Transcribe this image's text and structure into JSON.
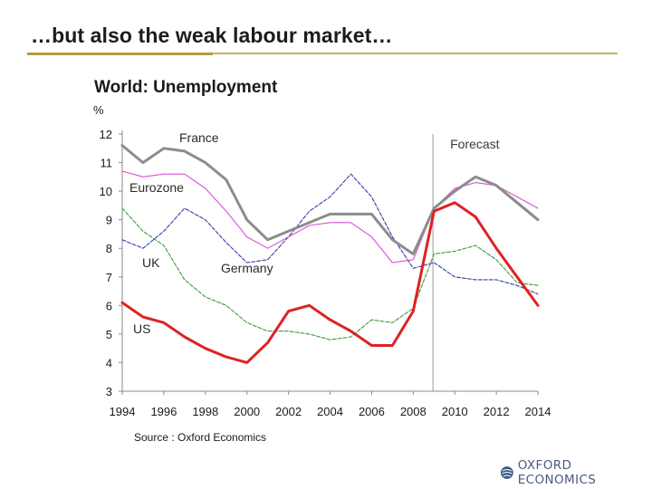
{
  "slide": {
    "title": "…but also the weak labour market…",
    "logo_text": "OXFORD ECONOMICS"
  },
  "colors": {
    "accent_rule": "#c9b25a",
    "france": "#8c8c8c",
    "eurozone": "#d452d4",
    "uk": "#3a3aa8",
    "germany": "#3c9a3c",
    "us": "#dd2222"
  },
  "chart_data": {
    "type": "line",
    "title": "World: Unemployment",
    "ylabel": "%",
    "xlabel": "",
    "source": "Source : Oxford Economics",
    "forecast_label": "Forecast",
    "forecast_from": 2009,
    "xlim": [
      1994,
      2014
    ],
    "ylim": [
      3,
      12
    ],
    "yticks": [
      3,
      4,
      5,
      6,
      7,
      8,
      9,
      10,
      11,
      12
    ],
    "xticks": [
      1994,
      1996,
      1998,
      2000,
      2002,
      2004,
      2006,
      2008,
      2010,
      2012,
      2014
    ],
    "x": [
      1994,
      1995,
      1996,
      1997,
      1998,
      1999,
      2000,
      2001,
      2002,
      2003,
      2004,
      2005,
      2006,
      2007,
      2008,
      2009,
      2010,
      2011,
      2012,
      2013,
      2014
    ],
    "series": [
      {
        "name": "France",
        "label": "France",
        "color_key": "france",
        "style": "solid-thick",
        "values": [
          11.6,
          11.0,
          11.5,
          11.4,
          11.0,
          10.4,
          9.0,
          8.3,
          8.6,
          8.9,
          9.2,
          9.2,
          9.2,
          8.3,
          7.8,
          9.4,
          10.0,
          10.5,
          10.2,
          9.6,
          9.0
        ]
      },
      {
        "name": "Eurozone",
        "label": "Eurozone",
        "color_key": "eurozone",
        "style": "solid-thin",
        "values": [
          10.7,
          10.5,
          10.6,
          10.6,
          10.1,
          9.3,
          8.4,
          8.0,
          8.4,
          8.8,
          8.9,
          8.9,
          8.4,
          7.5,
          7.6,
          9.4,
          10.1,
          10.3,
          10.2,
          9.8,
          9.4
        ]
      },
      {
        "name": "UK",
        "label": "UK",
        "color_key": "uk",
        "style": "dashed",
        "values": [
          8.3,
          8.0,
          8.6,
          9.4,
          9.0,
          8.2,
          7.5,
          7.6,
          8.4,
          9.3,
          9.8,
          10.6,
          9.8,
          8.4,
          7.3,
          7.5,
          7.0,
          6.9,
          6.9,
          6.7,
          6.4
        ]
      },
      {
        "name": "Germany",
        "label": "Germany",
        "color_key": "germany",
        "style": "dashed",
        "values": [
          9.4,
          8.6,
          8.1,
          6.9,
          6.3,
          6.0,
          5.4,
          5.1,
          5.1,
          5.0,
          4.8,
          4.9,
          5.5,
          5.4,
          5.9,
          7.8,
          7.9,
          8.1,
          7.6,
          6.8,
          6.7
        ]
      },
      {
        "name": "US",
        "label": "US",
        "color_key": "us",
        "style": "solid-thick",
        "values": [
          6.1,
          5.6,
          5.4,
          4.9,
          4.5,
          4.2,
          4.0,
          4.7,
          5.8,
          6.0,
          5.5,
          5.1,
          4.6,
          4.6,
          5.8,
          9.3,
          9.6,
          9.1,
          8.0,
          7.0,
          6.0
        ]
      }
    ]
  }
}
